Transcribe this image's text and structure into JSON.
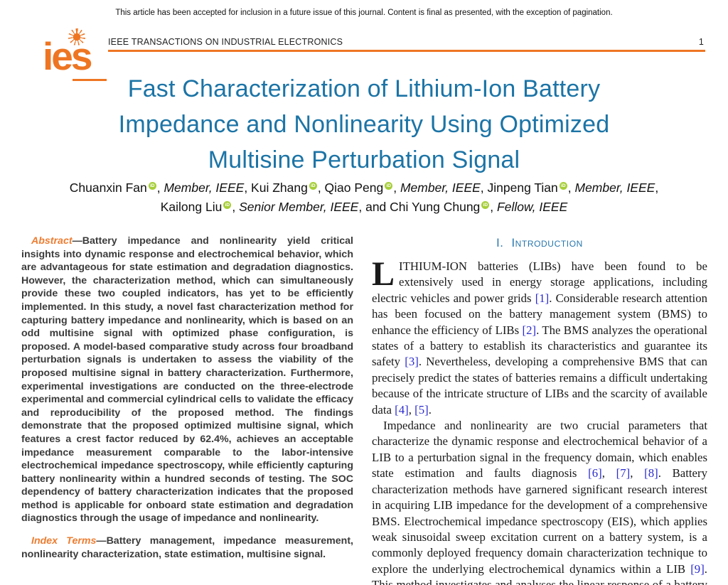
{
  "colors": {
    "accent_orange": "#ee7623",
    "label_orange": "#ed7d31",
    "title_blue": "#1c74a6",
    "heading_blue": "#2676ae",
    "citation_blue": "#2b2bd0",
    "orcid_green": "#a6ce39"
  },
  "page": {
    "disclaimer": "This article has been accepted for inclusion in a future issue of this journal. Content is final as presented, with the exception of pagination.",
    "journal": "IEEE TRANSACTIONS ON INDUSTRIAL ELECTRONICS",
    "page_number": "1",
    "logo_text": "ies"
  },
  "title": {
    "lines": [
      "Fast Characterization of Lithium-Ion Battery",
      "Impedance and Nonlinearity Using Optimized",
      "Multisine Perturbation Signal"
    ]
  },
  "authors": {
    "line1": [
      {
        "type": "text",
        "value": "Chuanxin Fan"
      },
      {
        "type": "orcid",
        "value": "iD"
      },
      {
        "type": "text",
        "value": ", "
      },
      {
        "type": "affil",
        "value": "Member, IEEE"
      },
      {
        "type": "text",
        "value": ", Kui Zhang"
      },
      {
        "type": "orcid",
        "value": "iD"
      },
      {
        "type": "text",
        "value": ", Qiao Peng"
      },
      {
        "type": "orcid",
        "value": "iD"
      },
      {
        "type": "text",
        "value": ", "
      },
      {
        "type": "affil",
        "value": "Member, IEEE"
      },
      {
        "type": "text",
        "value": ", Jinpeng Tian"
      },
      {
        "type": "orcid",
        "value": "iD"
      },
      {
        "type": "text",
        "value": ", "
      },
      {
        "type": "affil",
        "value": "Member, IEEE"
      },
      {
        "type": "text",
        "value": ","
      }
    ],
    "line2": [
      {
        "type": "text",
        "value": "Kailong Liu"
      },
      {
        "type": "orcid",
        "value": "iD"
      },
      {
        "type": "text",
        "value": ", "
      },
      {
        "type": "affil",
        "value": "Senior Member, IEEE"
      },
      {
        "type": "text",
        "value": ", and Chi Yung Chung"
      },
      {
        "type": "orcid",
        "value": "iD"
      },
      {
        "type": "text",
        "value": ", "
      },
      {
        "type": "affil",
        "value": "Fellow, IEEE"
      }
    ]
  },
  "abstract": {
    "label": "Abstract",
    "text": "—Battery impedance and nonlinearity yield critical insights into dynamic response and electrochemical behavior, which are advantageous for state estimation and degradation diagnostics. However, the characterization method, which can simultaneously provide these two coupled indicators, has yet to be efficiently implemented. In this study, a novel fast characterization method for capturing battery impedance and nonlinearity, which is based on an odd multisine signal with optimized phase configuration, is proposed. A model-based comparative study across four broadband perturbation signals is undertaken to assess the viability of the proposed multisine signal in battery characterization. Furthermore, experimental investigations are conducted on the three-electrode experimental and commercial cylindrical cells to validate the efficacy and reproducibility of the proposed method. The findings demonstrate that the proposed optimized multisine signal, which features a crest factor reduced by 62.4%, achieves an acceptable impedance measurement comparable to the labor-intensive electrochemical impedance spectroscopy, while efficiently capturing battery nonlinearity within a hundred seconds of testing. The SOC dependency of battery characterization indicates that the proposed method is applicable for onboard state estimation and degradation diagnostics through the usage of impedance and nonlinearity."
  },
  "index_terms": {
    "label": "Index Terms",
    "text": "—Battery management, impedance measurement, nonlinearity characterization, state estimation, multisine signal."
  },
  "introduction": {
    "heading_number": "I.",
    "heading": "Introduction",
    "dropcap": "L",
    "p1": "ITHIUM-ION batteries (LIBs) have been found to be extensively used in energy storage applications, including electric vehicles and power grids [1]. Considerable research attention has been focused on the battery management system (BMS) to enhance the efficiency of LIBs [2]. The BMS analyzes the operational states of a battery to establish its characteristics and guarantee its safety [3]. Nevertheless, developing a comprehensive BMS that can precisely predict the states of batteries remains a difficult undertaking because of the intricate structure of LIBs and the scarcity of available data [4], [5].",
    "p2": "Impedance and nonlinearity are two crucial parameters that characterize the dynamic response and electrochemical behavior of a LIB to a perturbation signal in the frequency domain, which enables state estimation and faults diagnosis [6], [7], [8]. Battery characterization methods have garnered significant research interest in acquiring LIB impedance for the development of a comprehensive BMS. Electrochemical impedance spectroscopy (EIS), which applies weak sinusoidal sweep excitation current on a battery system, is a commonly deployed frequency domain characterization technique to explore the underlying electrochemical dynamics within a LIB [9]. This method investigates and analyses the linear response of a battery throughout a broad"
  }
}
